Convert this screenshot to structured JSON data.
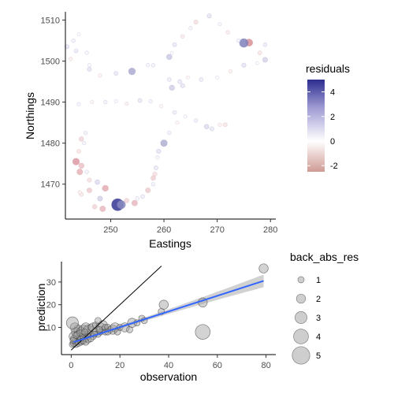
{
  "chart_data": [
    {
      "type": "scatter",
      "xlabel": "Eastings",
      "ylabel": "Northings",
      "xlim": [
        241.5,
        281
      ],
      "ylim": [
        1461.5,
        1512
      ],
      "xticks": [
        250,
        260,
        270,
        280
      ],
      "yticks": [
        1470,
        1480,
        1490,
        1500,
        1510
      ],
      "grid": false,
      "colorbar": {
        "title": "residuals",
        "ticks": [
          4,
          2,
          0,
          -2
        ],
        "range": [
          -2.5,
          5
        ],
        "colors": {
          "low": "#b2182b",
          "mid": "#ffffff",
          "high": "#2c2d8f"
        }
      },
      "points": [
        {
          "x": 244.0,
          "y": 1489.5,
          "r": 0.2
        },
        {
          "x": 246.5,
          "y": 1490.0,
          "r": -0.2
        },
        {
          "x": 249.0,
          "y": 1490.0,
          "r": 0.3
        },
        {
          "x": 251.0,
          "y": 1490.2,
          "r": 0.1
        },
        {
          "x": 253.0,
          "y": 1489.6,
          "r": -0.3
        },
        {
          "x": 255.5,
          "y": 1490.4,
          "r": 0.5
        },
        {
          "x": 257.5,
          "y": 1490.2,
          "r": 0.2
        },
        {
          "x": 259.5,
          "y": 1489.0,
          "r": -0.2
        },
        {
          "x": 262.0,
          "y": 1487.5,
          "r": 0.4
        },
        {
          "x": 264.0,
          "y": 1486.5,
          "r": 0.0
        },
        {
          "x": 266.0,
          "y": 1485.5,
          "r": 0.3
        },
        {
          "x": 268.0,
          "y": 1484.0,
          "r": 0.8
        },
        {
          "x": 270.5,
          "y": 1484.5,
          "r": -0.3
        },
        {
          "x": 263.0,
          "y": 1495.0,
          "r": 0.5
        },
        {
          "x": 261.5,
          "y": 1493.5,
          "r": 1.1
        },
        {
          "x": 267.0,
          "y": 1495.5,
          "r": 0.4
        },
        {
          "x": 270.0,
          "y": 1496.0,
          "r": 0.0
        },
        {
          "x": 272.5,
          "y": 1497.5,
          "r": -0.3
        },
        {
          "x": 275.0,
          "y": 1499.0,
          "r": 0.6
        },
        {
          "x": 277.5,
          "y": 1499.5,
          "r": 0.0
        },
        {
          "x": 279.0,
          "y": 1500.3,
          "r": 1.0
        },
        {
          "x": 278.0,
          "y": 1502.0,
          "r": -0.5
        },
        {
          "x": 279.0,
          "y": 1504.0,
          "r": 0.4
        },
        {
          "x": 276.0,
          "y": 1504.5,
          "r": -2.2
        },
        {
          "x": 275.0,
          "y": 1504.4,
          "r": 3.0
        },
        {
          "x": 274.0,
          "y": 1505.0,
          "r": 0.3
        },
        {
          "x": 272.0,
          "y": 1507.0,
          "r": -0.4
        },
        {
          "x": 270.5,
          "y": 1509.0,
          "r": 0.2
        },
        {
          "x": 268.5,
          "y": 1511.0,
          "r": 0.6
        },
        {
          "x": 266.0,
          "y": 1509.5,
          "r": -0.6
        },
        {
          "x": 265.0,
          "y": 1508.0,
          "r": 0.2
        },
        {
          "x": 263.5,
          "y": 1506.0,
          "r": -0.4
        },
        {
          "x": 262.0,
          "y": 1504.0,
          "r": 0.5
        },
        {
          "x": 261.5,
          "y": 1502.0,
          "r": 0.0
        },
        {
          "x": 261.0,
          "y": 1501.0,
          "r": 1.2
        },
        {
          "x": 258.0,
          "y": 1499.0,
          "r": 0.3
        },
        {
          "x": 254.0,
          "y": 1497.5,
          "r": 2.0
        },
        {
          "x": 251.0,
          "y": 1497.0,
          "r": 0.5
        },
        {
          "x": 248.0,
          "y": 1496.5,
          "r": -0.3
        },
        {
          "x": 246.0,
          "y": 1498.0,
          "r": 0.6
        },
        {
          "x": 246.0,
          "y": 1499.0,
          "r": 0.1
        },
        {
          "x": 245.5,
          "y": 1502.0,
          "r": 0.2
        },
        {
          "x": 243.5,
          "y": 1502.5,
          "r": 0.4
        },
        {
          "x": 242.5,
          "y": 1500.5,
          "r": -0.3
        },
        {
          "x": 241.8,
          "y": 1503.5,
          "r": 0.6
        },
        {
          "x": 244.0,
          "y": 1506.5,
          "r": 0.0
        },
        {
          "x": 243.0,
          "y": 1505.0,
          "r": 0.3
        },
        {
          "x": 244.5,
          "y": 1481.0,
          "r": -0.8
        },
        {
          "x": 245.0,
          "y": 1480.0,
          "r": 0.2
        },
        {
          "x": 244.0,
          "y": 1478.0,
          "r": -0.5
        },
        {
          "x": 243.5,
          "y": 1475.5,
          "r": -2.0
        },
        {
          "x": 244.5,
          "y": 1474.5,
          "r": -1.2
        },
        {
          "x": 245.5,
          "y": 1473.0,
          "r": 0.3
        },
        {
          "x": 246.0,
          "y": 1471.0,
          "r": -0.6
        },
        {
          "x": 247.5,
          "y": 1470.5,
          "r": 0.8
        },
        {
          "x": 249.0,
          "y": 1469.0,
          "r": -1.6
        },
        {
          "x": 248.0,
          "y": 1466.5,
          "r": 1.0
        },
        {
          "x": 247.0,
          "y": 1464.5,
          "r": -0.8
        },
        {
          "x": 248.5,
          "y": 1464.0,
          "r": -1.4
        },
        {
          "x": 251.3,
          "y": 1465.0,
          "r": 4.8
        },
        {
          "x": 252.0,
          "y": 1465.0,
          "r": 2.8
        },
        {
          "x": 254.5,
          "y": 1465.4,
          "r": -1.4
        },
        {
          "x": 256.0,
          "y": 1467.0,
          "r": 0.4
        },
        {
          "x": 257.0,
          "y": 1468.5,
          "r": -1.0
        },
        {
          "x": 258.0,
          "y": 1470.0,
          "r": 0.3
        },
        {
          "x": 258.3,
          "y": 1472.5,
          "r": -0.6
        },
        {
          "x": 258.5,
          "y": 1474.0,
          "r": 0.5
        },
        {
          "x": 258.8,
          "y": 1476.5,
          "r": 0.2
        },
        {
          "x": 259.0,
          "y": 1478.0,
          "r": 0.6
        },
        {
          "x": 260.0,
          "y": 1480.0,
          "r": 1.9
        },
        {
          "x": 261.0,
          "y": 1482.5,
          "r": 0.3
        },
        {
          "x": 262.5,
          "y": 1485.0,
          "r": -0.2
        },
        {
          "x": 261.0,
          "y": 1495.5,
          "r": 0.4
        },
        {
          "x": 263.5,
          "y": 1494.0,
          "r": 0.6
        },
        {
          "x": 257.0,
          "y": 1499.0,
          "r": 0.2
        },
        {
          "x": 244.2,
          "y": 1473.0,
          "r": -1.5
        },
        {
          "x": 245.3,
          "y": 1482.5,
          "r": 0.3
        },
        {
          "x": 246.0,
          "y": 1468.5,
          "r": -1.0
        },
        {
          "x": 244.5,
          "y": 1467.5,
          "r": -0.4
        },
        {
          "x": 244.2,
          "y": 1468.0,
          "r": -0.3
        },
        {
          "x": 253.0,
          "y": 1466.0,
          "r": -0.8
        },
        {
          "x": 255.0,
          "y": 1466.5,
          "r": 0.2
        },
        {
          "x": 258.0,
          "y": 1471.5,
          "r": -0.9
        },
        {
          "x": 264.5,
          "y": 1496.0,
          "r": -0.2
        },
        {
          "x": 269.0,
          "y": 1483.5,
          "r": 0.5
        },
        {
          "x": 271.5,
          "y": 1484.5,
          "r": -0.5
        }
      ]
    },
    {
      "type": "scatter",
      "xlabel": "observation",
      "ylabel": "prediction",
      "xlim": [
        -4,
        84
      ],
      "ylim": [
        -2,
        39
      ],
      "xticks": [
        0,
        20,
        40,
        60,
        80
      ],
      "yticks": [
        10,
        20,
        30
      ],
      "grid": false,
      "identity_line": true,
      "fit_line": {
        "from": [
          1,
          3.5
        ],
        "to": [
          79,
          30.5
        ],
        "color": "#3366ff",
        "band_color": "#bdbdbd"
      },
      "size_legend": {
        "title": "back_abs_res",
        "values": [
          1,
          2,
          3,
          4,
          5
        ]
      },
      "points": [
        {
          "x": 0.5,
          "y": 2.5,
          "s": 1
        },
        {
          "x": 1,
          "y": 3,
          "s": 1
        },
        {
          "x": 1.5,
          "y": 4,
          "s": 1
        },
        {
          "x": 2,
          "y": 3.5,
          "s": 1
        },
        {
          "x": 2.5,
          "y": 5,
          "s": 1
        },
        {
          "x": 3,
          "y": 4,
          "s": 1
        },
        {
          "x": 3.5,
          "y": 6,
          "s": 1
        },
        {
          "x": 4,
          "y": 5,
          "s": 1
        },
        {
          "x": 4.5,
          "y": 4,
          "s": 1
        },
        {
          "x": 5,
          "y": 6,
          "s": 1
        },
        {
          "x": 6,
          "y": 5,
          "s": 1
        },
        {
          "x": 6.5,
          "y": 7,
          "s": 1
        },
        {
          "x": 7,
          "y": 6,
          "s": 1
        },
        {
          "x": 8,
          "y": 7,
          "s": 1
        },
        {
          "x": 9,
          "y": 6,
          "s": 1
        },
        {
          "x": 10,
          "y": 8,
          "s": 1
        },
        {
          "x": 11,
          "y": 7,
          "s": 1
        },
        {
          "x": 12,
          "y": 8,
          "s": 1
        },
        {
          "x": 13,
          "y": 9,
          "s": 1
        },
        {
          "x": 14,
          "y": 8,
          "s": 1
        },
        {
          "x": 1,
          "y": 6,
          "s": 2
        },
        {
          "x": 2,
          "y": 8,
          "s": 2
        },
        {
          "x": 3,
          "y": 9,
          "s": 2
        },
        {
          "x": 1.5,
          "y": 10,
          "s": 2
        },
        {
          "x": 0.5,
          "y": 12,
          "s": 3
        },
        {
          "x": 4,
          "y": 8,
          "s": 2
        },
        {
          "x": 5,
          "y": 9,
          "s": 2
        },
        {
          "x": 6,
          "y": 10,
          "s": 2
        },
        {
          "x": 7,
          "y": 9,
          "s": 2
        },
        {
          "x": 8,
          "y": 10,
          "s": 1
        },
        {
          "x": 9,
          "y": 10,
          "s": 2
        },
        {
          "x": 10,
          "y": 11,
          "s": 1
        },
        {
          "x": 11,
          "y": 13,
          "s": 1
        },
        {
          "x": 12,
          "y": 10,
          "s": 2
        },
        {
          "x": 13,
          "y": 11,
          "s": 2
        },
        {
          "x": 14,
          "y": 10,
          "s": 1
        },
        {
          "x": 15,
          "y": 10,
          "s": 1
        },
        {
          "x": 16,
          "y": 9,
          "s": 1
        },
        {
          "x": 17,
          "y": 9,
          "s": 2
        },
        {
          "x": 18,
          "y": 10,
          "s": 2
        },
        {
          "x": 19,
          "y": 8,
          "s": 1
        },
        {
          "x": 20,
          "y": 10,
          "s": 1
        },
        {
          "x": 22,
          "y": 10,
          "s": 2
        },
        {
          "x": 24,
          "y": 9,
          "s": 1
        },
        {
          "x": 25,
          "y": 12,
          "s": 2
        },
        {
          "x": 27,
          "y": 12,
          "s": 1
        },
        {
          "x": 29,
          "y": 14,
          "s": 1
        },
        {
          "x": 30,
          "y": 13,
          "s": 1
        },
        {
          "x": 37,
          "y": 17,
          "s": 1
        },
        {
          "x": 38,
          "y": 20,
          "s": 2
        },
        {
          "x": 54,
          "y": 21,
          "s": 2
        },
        {
          "x": 54,
          "y": 8,
          "s": 4
        },
        {
          "x": 79,
          "y": 36,
          "s": 2
        },
        {
          "x": 2,
          "y": 2.5,
          "s": 1
        },
        {
          "x": 3,
          "y": 3,
          "s": 1
        },
        {
          "x": 4,
          "y": 3.5,
          "s": 1
        },
        {
          "x": 5,
          "y": 4,
          "s": 1
        },
        {
          "x": 6,
          "y": 3.5,
          "s": 1
        },
        {
          "x": 7,
          "y": 4.5,
          "s": 1
        },
        {
          "x": 8,
          "y": 5,
          "s": 1
        },
        {
          "x": 2.5,
          "y": 7,
          "s": 1
        },
        {
          "x": 3.5,
          "y": 7.5,
          "s": 1
        },
        {
          "x": 5.5,
          "y": 8,
          "s": 1
        },
        {
          "x": 9.5,
          "y": 7,
          "s": 1
        },
        {
          "x": 11.5,
          "y": 9,
          "s": 1
        },
        {
          "x": 15,
          "y": 8,
          "s": 1
        },
        {
          "x": 1,
          "y": 5,
          "s": 1
        },
        {
          "x": 2,
          "y": 6.5,
          "s": 1
        },
        {
          "x": 0.8,
          "y": 4.2,
          "s": 1
        }
      ]
    }
  ]
}
